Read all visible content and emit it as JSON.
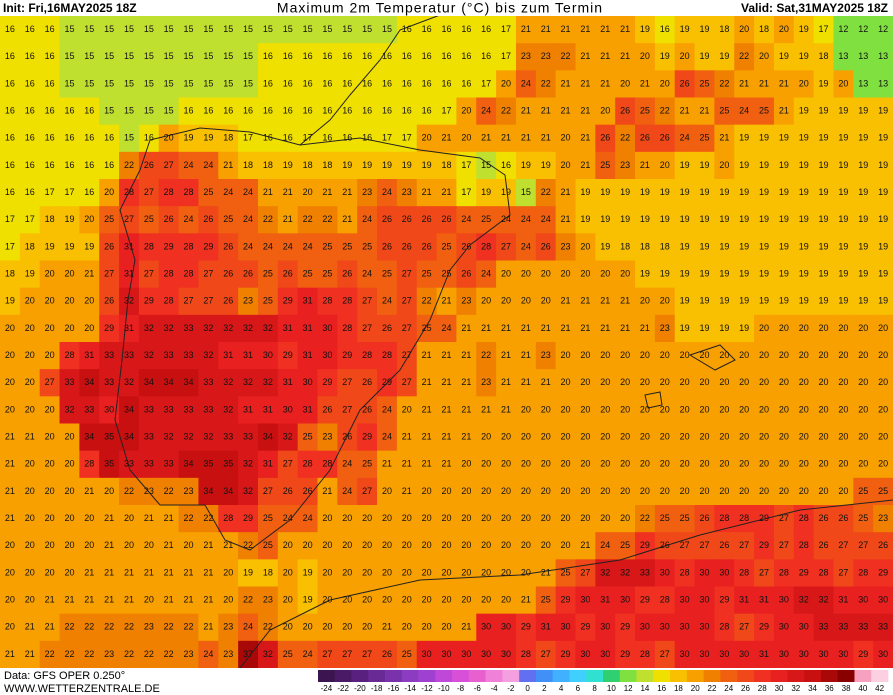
{
  "header": {
    "init": "Init: Fri,16MAY2025 18Z",
    "title": "Maximum 2m Temperatur (°C) bis zum Termin",
    "valid": "Valid: Sat,31MAY2025 18Z"
  },
  "footer": {
    "data": "Data: GFS OPER 0.250°",
    "site": "WWW.WETTERZENTRALE.DE"
  },
  "colorbar": {
    "values": [
      -24,
      -22,
      -20,
      -18,
      -16,
      -14,
      -12,
      -10,
      -8,
      -6,
      -4,
      -2,
      0,
      2,
      4,
      6,
      8,
      10,
      12,
      14,
      16,
      18,
      20,
      22,
      24,
      26,
      28,
      30,
      32,
      34,
      36,
      38,
      40,
      42
    ],
    "colors": [
      "#3c1450",
      "#4a1a66",
      "#5a2080",
      "#6a2a96",
      "#7a32ac",
      "#8c3cc0",
      "#a040d0",
      "#c048d8",
      "#d850d8",
      "#e860d0",
      "#f080d8",
      "#f4a0e0",
      "#6070f0",
      "#4090f8",
      "#40b0ff",
      "#40d0ff",
      "#30e0d0",
      "#30d070",
      "#80e040",
      "#c0e030",
      "#f0e000",
      "#f8c000",
      "#f8a000",
      "#f08000",
      "#f06010",
      "#f04818",
      "#f03020",
      "#e82020",
      "#d81818",
      "#c81010",
      "#a80808",
      "#880000",
      "#f8a0c0",
      "#fcd0e0"
    ]
  },
  "grid": {
    "rows": [
      [
        16,
        16,
        16,
        15,
        15,
        15,
        15,
        15,
        15,
        15,
        15,
        15,
        15,
        15,
        15,
        15,
        15,
        15,
        15,
        15,
        16,
        16,
        16,
        16,
        16,
        17,
        21,
        21,
        21,
        21,
        21,
        21,
        19,
        16,
        19,
        19,
        18,
        20,
        18,
        20,
        19,
        17,
        12,
        12,
        12
      ],
      [
        16,
        16,
        16,
        15,
        15,
        15,
        15,
        15,
        15,
        15,
        15,
        15,
        15,
        16,
        16,
        16,
        16,
        16,
        16,
        16,
        16,
        16,
        16,
        16,
        16,
        17,
        23,
        23,
        22,
        21,
        21,
        21,
        20,
        19,
        20,
        19,
        19,
        22,
        20,
        19,
        19,
        18,
        13,
        13,
        13
      ],
      [
        16,
        16,
        16,
        15,
        15,
        15,
        15,
        15,
        15,
        15,
        15,
        15,
        15,
        16,
        16,
        16,
        16,
        16,
        16,
        16,
        16,
        16,
        16,
        16,
        17,
        20,
        24,
        22,
        21,
        21,
        21,
        20,
        21,
        20,
        26,
        25,
        22,
        21,
        21,
        21,
        20,
        19,
        20,
        13,
        13
      ],
      [
        16,
        16,
        16,
        16,
        16,
        15,
        15,
        15,
        15,
        16,
        16,
        16,
        16,
        16,
        16,
        16,
        16,
        16,
        16,
        16,
        16,
        16,
        17,
        20,
        24,
        22,
        21,
        21,
        21,
        21,
        20,
        26,
        25,
        22,
        21,
        21,
        25,
        24,
        25,
        21,
        19,
        19,
        19,
        19,
        19
      ],
      [
        16,
        16,
        16,
        16,
        16,
        16,
        15,
        16,
        20,
        19,
        19,
        18,
        17,
        16,
        16,
        17,
        16,
        16,
        16,
        17,
        17,
        20,
        21,
        20,
        21,
        21,
        21,
        21,
        20,
        21,
        26,
        22,
        26,
        26,
        24,
        25,
        21,
        19,
        19,
        19,
        19,
        19,
        19,
        19,
        19
      ],
      [
        16,
        16,
        16,
        16,
        16,
        16,
        22,
        26,
        27,
        24,
        24,
        21,
        18,
        18,
        19,
        18,
        18,
        19,
        19,
        19,
        19,
        19,
        18,
        17,
        15,
        16,
        19,
        19,
        20,
        21,
        25,
        23,
        21,
        20,
        19,
        19,
        20,
        19,
        19,
        19,
        19,
        19,
        19,
        19,
        19
      ],
      [
        16,
        16,
        17,
        17,
        16,
        20,
        28,
        27,
        28,
        28,
        25,
        24,
        24,
        21,
        21,
        20,
        21,
        21,
        23,
        24,
        23,
        21,
        21,
        17,
        19,
        19,
        15,
        22,
        21,
        19,
        19,
        19,
        19,
        19,
        19,
        19,
        19,
        19,
        19,
        19,
        19,
        19,
        19,
        19,
        19
      ],
      [
        17,
        17,
        18,
        19,
        20,
        25,
        27,
        25,
        26,
        24,
        26,
        25,
        24,
        22,
        21,
        22,
        22,
        21,
        24,
        26,
        26,
        26,
        26,
        24,
        25,
        24,
        24,
        24,
        21,
        19,
        19,
        19,
        19,
        19,
        19,
        19,
        19,
        19,
        19,
        19,
        19,
        19,
        19,
        19,
        19
      ],
      [
        17,
        18,
        19,
        19,
        19,
        26,
        31,
        28,
        29,
        28,
        29,
        26,
        24,
        24,
        24,
        24,
        25,
        25,
        25,
        26,
        26,
        26,
        25,
        26,
        28,
        27,
        24,
        26,
        23,
        20,
        19,
        18,
        18,
        18,
        19,
        19,
        19,
        19,
        19,
        19,
        19,
        19,
        19,
        19,
        19
      ],
      [
        18,
        19,
        20,
        20,
        21,
        27,
        31,
        27,
        28,
        28,
        27,
        26,
        26,
        25,
        26,
        25,
        25,
        26,
        24,
        25,
        27,
        25,
        25,
        26,
        24,
        20,
        20,
        20,
        20,
        20,
        20,
        20,
        19,
        19,
        19,
        19,
        19,
        19,
        19,
        19,
        19,
        19,
        19,
        19,
        19
      ],
      [
        19,
        20,
        20,
        20,
        20,
        26,
        32,
        29,
        28,
        27,
        27,
        26,
        23,
        25,
        29,
        31,
        28,
        28,
        27,
        24,
        27,
        22,
        21,
        23,
        20,
        20,
        20,
        20,
        21,
        21,
        21,
        21,
        20,
        20,
        19,
        19,
        19,
        19,
        19,
        19,
        19,
        19,
        19,
        19,
        19
      ],
      [
        20,
        20,
        20,
        20,
        20,
        29,
        31,
        32,
        32,
        33,
        32,
        32,
        32,
        32,
        31,
        31,
        30,
        28,
        27,
        26,
        27,
        25,
        24,
        21,
        21,
        21,
        21,
        21,
        21,
        21,
        21,
        21,
        21,
        23,
        19,
        19,
        19,
        19,
        20,
        20,
        20,
        20,
        20,
        20,
        20
      ],
      [
        20,
        20,
        20,
        28,
        31,
        33,
        33,
        32,
        33,
        33,
        32,
        31,
        31,
        30,
        29,
        31,
        30,
        29,
        28,
        28,
        27,
        21,
        21,
        21,
        22,
        21,
        21,
        23,
        20,
        20,
        20,
        20,
        20,
        20,
        20,
        20,
        20,
        20,
        20,
        20,
        20,
        20,
        20,
        20,
        20
      ],
      [
        20,
        20,
        27,
        33,
        34,
        33,
        32,
        34,
        34,
        34,
        33,
        32,
        32,
        32,
        31,
        30,
        29,
        27,
        26,
        29,
        27,
        21,
        21,
        21,
        23,
        21,
        21,
        21,
        20,
        20,
        20,
        20,
        20,
        20,
        20,
        20,
        20,
        20,
        20,
        20,
        20,
        20,
        20,
        20,
        20
      ],
      [
        20,
        20,
        20,
        32,
        33,
        30,
        34,
        33,
        33,
        33,
        33,
        32,
        31,
        31,
        30,
        31,
        26,
        27,
        26,
        24,
        20,
        21,
        21,
        21,
        21,
        21,
        20,
        20,
        20,
        20,
        20,
        20,
        20,
        20,
        20,
        20,
        20,
        20,
        20,
        20,
        20,
        20,
        20,
        20,
        20
      ],
      [
        21,
        21,
        20,
        20,
        34,
        35,
        34,
        33,
        32,
        32,
        32,
        33,
        33,
        34,
        32,
        25,
        23,
        26,
        29,
        24,
        21,
        21,
        21,
        21,
        20,
        20,
        20,
        20,
        20,
        20,
        20,
        20,
        20,
        20,
        20,
        20,
        20,
        20,
        20,
        20,
        20,
        20,
        20,
        20,
        20
      ],
      [
        21,
        20,
        20,
        20,
        28,
        35,
        33,
        33,
        33,
        34,
        35,
        35,
        32,
        31,
        27,
        28,
        28,
        24,
        25,
        21,
        21,
        21,
        21,
        20,
        20,
        20,
        20,
        20,
        20,
        20,
        20,
        20,
        20,
        20,
        20,
        20,
        20,
        20,
        20,
        20,
        20,
        20,
        20,
        20,
        20
      ],
      [
        21,
        20,
        20,
        20,
        21,
        20,
        22,
        23,
        22,
        23,
        34,
        34,
        32,
        27,
        26,
        26,
        21,
        24,
        27,
        20,
        21,
        20,
        20,
        20,
        20,
        20,
        20,
        20,
        20,
        20,
        20,
        20,
        20,
        20,
        20,
        20,
        20,
        20,
        20,
        20,
        20,
        20,
        20,
        25,
        25
      ],
      [
        21,
        20,
        20,
        20,
        20,
        21,
        20,
        21,
        21,
        22,
        22,
        28,
        29,
        25,
        24,
        24,
        20,
        20,
        20,
        20,
        20,
        20,
        20,
        20,
        20,
        20,
        20,
        20,
        20,
        20,
        20,
        20,
        22,
        25,
        25,
        26,
        28,
        28,
        29,
        27,
        28,
        26,
        26,
        25,
        23
      ],
      [
        20,
        20,
        20,
        20,
        20,
        21,
        20,
        20,
        21,
        20,
        21,
        21,
        22,
        25,
        20,
        20,
        20,
        20,
        20,
        20,
        20,
        20,
        20,
        20,
        20,
        20,
        20,
        20,
        20,
        21,
        24,
        25,
        29,
        26,
        27,
        27,
        26,
        27,
        29,
        27,
        28,
        26,
        27,
        27,
        26
      ],
      [
        20,
        20,
        20,
        20,
        21,
        21,
        21,
        21,
        21,
        21,
        21,
        20,
        19,
        18,
        20,
        19,
        20,
        20,
        20,
        20,
        20,
        20,
        20,
        20,
        20,
        20,
        20,
        21,
        25,
        27,
        32,
        32,
        33,
        30,
        28,
        30,
        30,
        28,
        27,
        28,
        29,
        28,
        27,
        28,
        29
      ],
      [
        20,
        20,
        21,
        21,
        21,
        21,
        21,
        20,
        21,
        21,
        21,
        20,
        22,
        23,
        20,
        19,
        20,
        20,
        20,
        20,
        20,
        20,
        20,
        20,
        20,
        20,
        21,
        25,
        29,
        30,
        31,
        30,
        29,
        28,
        30,
        30,
        29,
        31,
        31,
        30,
        32,
        32,
        31,
        30,
        30
      ],
      [
        20,
        21,
        21,
        22,
        22,
        22,
        22,
        23,
        22,
        22,
        21,
        23,
        24,
        22,
        20,
        20,
        20,
        20,
        20,
        21,
        20,
        20,
        20,
        21,
        30,
        30,
        29,
        31,
        30,
        29,
        30,
        29,
        30,
        30,
        30,
        30,
        28,
        27,
        29,
        30,
        30,
        33,
        33,
        33,
        33
      ],
      [
        21,
        21,
        22,
        22,
        22,
        23,
        22,
        22,
        22,
        23,
        24,
        23,
        37,
        32,
        25,
        24,
        27,
        27,
        27,
        26,
        25,
        30,
        30,
        30,
        30,
        30,
        28,
        27,
        29,
        30,
        30,
        29,
        28,
        27,
        30,
        30,
        30,
        30,
        31,
        30,
        30,
        30,
        30,
        29,
        30
      ]
    ]
  }
}
